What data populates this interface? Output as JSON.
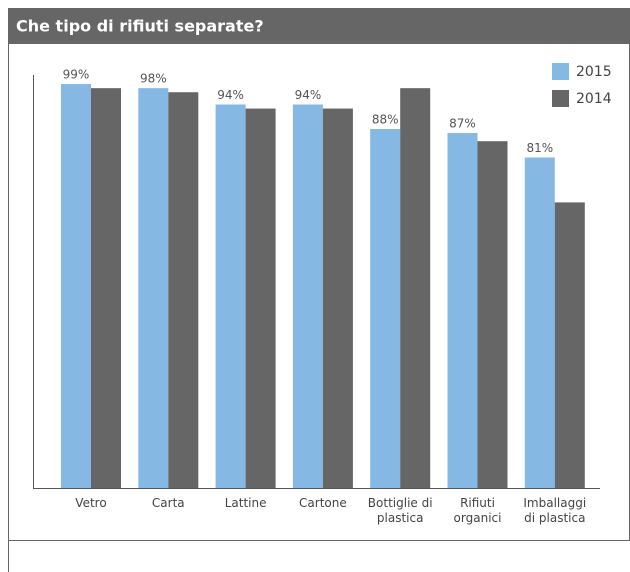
{
  "chart_data": {
    "type": "bar",
    "title": "Che tipo di rifiuti separate?",
    "categories": [
      "Vetro",
      "Carta",
      "Lattine",
      "Cartone",
      "Bottiglie di plastica",
      "Rifiuti organici",
      "Imballaggi di plastica"
    ],
    "series": [
      {
        "name": "2015",
        "color": "#85b8e3",
        "values": [
          99,
          98,
          94,
          94,
          88,
          87,
          81
        ],
        "value_labels": [
          "99%",
          "98%",
          "94%",
          "94%",
          "88%",
          "87%",
          "81%"
        ]
      },
      {
        "name": "2014",
        "color": "#666666",
        "values": [
          98,
          97,
          93,
          93,
          98,
          85,
          70
        ]
      }
    ],
    "ylim": [
      0,
      100
    ],
    "legend": "top-right"
  }
}
